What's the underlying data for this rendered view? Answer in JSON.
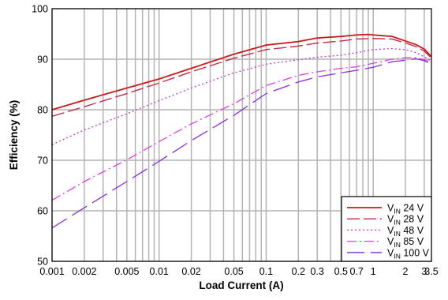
{
  "chart_data": {
    "type": "line",
    "xlabel": "Load Current (A)",
    "ylabel": "Efficiency (%)",
    "xscale": "log",
    "xlim": [
      0.001,
      3.5
    ],
    "ylim": [
      50,
      100
    ],
    "grid": true,
    "legend_position": "bottom-right",
    "x_ticks": [
      {
        "v": 0.001,
        "label": "0.001"
      },
      {
        "v": 0.002,
        "label": "0.002"
      },
      {
        "v": 0.005,
        "label": "0.005"
      },
      {
        "v": 0.01,
        "label": "0.01"
      },
      {
        "v": 0.02,
        "label": "0.02"
      },
      {
        "v": 0.05,
        "label": "0.05"
      },
      {
        "v": 0.1,
        "label": "0.1"
      },
      {
        "v": 0.2,
        "label": "0.2"
      },
      {
        "v": 0.3,
        "label": "0.3"
      },
      {
        "v": 0.5,
        "label": "0.5"
      },
      {
        "v": 0.7,
        "label": "0.7"
      },
      {
        "v": 1,
        "label": "1"
      },
      {
        "v": 2,
        "label": "2"
      },
      {
        "v": 3,
        "label": "3"
      },
      {
        "v": 3.5,
        "label": "3.5"
      }
    ],
    "y_ticks": [
      {
        "v": 50,
        "label": "50"
      },
      {
        "v": 60,
        "label": "60"
      },
      {
        "v": 70,
        "label": "70"
      },
      {
        "v": 80,
        "label": "80"
      },
      {
        "v": 90,
        "label": "90"
      },
      {
        "v": 100,
        "label": "100"
      }
    ],
    "series": [
      {
        "name": "24 V",
        "name_prefix": "V",
        "name_sub": "IN",
        "color": "#cc1a1a",
        "dash": "",
        "width": 1.8,
        "x": [
          0.001,
          0.002,
          0.005,
          0.01,
          0.02,
          0.05,
          0.1,
          0.2,
          0.3,
          0.5,
          0.7,
          0.9,
          1,
          1.5,
          2,
          2.5,
          3,
          3.5
        ],
        "y": [
          80,
          81.9,
          84.3,
          86.1,
          88.2,
          91,
          92.8,
          93.5,
          94.2,
          94.5,
          94.8,
          94.9,
          94.8,
          94.5,
          93.6,
          92.9,
          92,
          90.5
        ]
      },
      {
        "name": "28 V",
        "name_prefix": "V",
        "name_sub": "IN",
        "color": "#c42a4a",
        "dash": "16,5",
        "width": 1.4,
        "x": [
          0.001,
          0.002,
          0.005,
          0.01,
          0.02,
          0.05,
          0.1,
          0.2,
          0.3,
          0.5,
          0.7,
          1,
          1.5,
          2,
          2.5,
          3,
          3.5
        ],
        "y": [
          78.7,
          80.6,
          83.2,
          85.3,
          87.5,
          90.2,
          91.9,
          92.6,
          93.2,
          93.6,
          94,
          94.1,
          94,
          93.2,
          92.5,
          91.6,
          90.2
        ]
      },
      {
        "name": "48 V",
        "name_prefix": "V",
        "name_sub": "IN",
        "color": "#c23bc2",
        "dash": "2,3",
        "width": 1.3,
        "x": [
          0.001,
          0.002,
          0.005,
          0.01,
          0.02,
          0.05,
          0.1,
          0.2,
          0.3,
          0.5,
          0.7,
          1,
          1.5,
          2,
          2.5,
          3,
          3.5
        ],
        "y": [
          73.1,
          76,
          79.2,
          81.8,
          84.3,
          87.3,
          89,
          89.9,
          90.4,
          90.8,
          91.3,
          91.9,
          92.1,
          91.9,
          91.3,
          90.5,
          89.6
        ]
      },
      {
        "name": "85 V",
        "name_prefix": "V",
        "name_sub": "IN",
        "color": "#e040e0",
        "dash": "12,4,2,4",
        "width": 1.3,
        "x": [
          0.001,
          0.002,
          0.005,
          0.01,
          0.02,
          0.05,
          0.1,
          0.2,
          0.3,
          0.5,
          0.7,
          1,
          1.5,
          2,
          2.5,
          3,
          3.5
        ],
        "y": [
          62.1,
          65.8,
          70.1,
          73.7,
          77.2,
          81.2,
          84.8,
          86.8,
          87.5,
          88.2,
          88.5,
          89.2,
          90,
          90.3,
          90.3,
          89.9,
          89.4
        ]
      },
      {
        "name": "100 V",
        "name_prefix": "V",
        "name_sub": "IN",
        "color": "#8a2be2",
        "dash": "22,8",
        "width": 1.3,
        "x": [
          0.001,
          0.002,
          0.005,
          0.01,
          0.02,
          0.05,
          0.1,
          0.2,
          0.3,
          0.5,
          0.7,
          1,
          1.5,
          2,
          2.5,
          3,
          3.5
        ],
        "y": [
          56.6,
          60.6,
          65.8,
          69.8,
          73.9,
          78.9,
          83.2,
          85.5,
          86.5,
          87.3,
          87.8,
          88.4,
          89.5,
          89.8,
          90.1,
          89.7,
          89
        ]
      }
    ]
  }
}
